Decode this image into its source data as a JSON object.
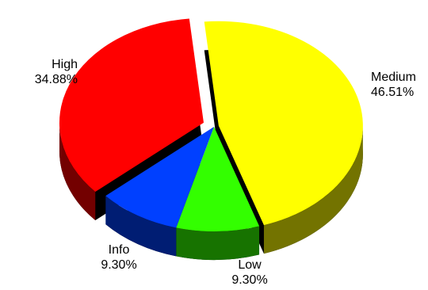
{
  "chart_data": {
    "type": "pie",
    "title": "",
    "style": "3d-exploded",
    "slices": [
      {
        "label": "Medium",
        "value": 46.51,
        "percent_text": "46.51%",
        "color": "#ffff00"
      },
      {
        "label": "Low",
        "value": 9.3,
        "percent_text": "9.30%",
        "color": "#33ff00"
      },
      {
        "label": "Info",
        "value": 9.3,
        "percent_text": "9.30%",
        "color": "#0040ff"
      },
      {
        "label": "High",
        "value": 34.88,
        "percent_text": "34.88%",
        "color": "#ff0000"
      }
    ]
  }
}
